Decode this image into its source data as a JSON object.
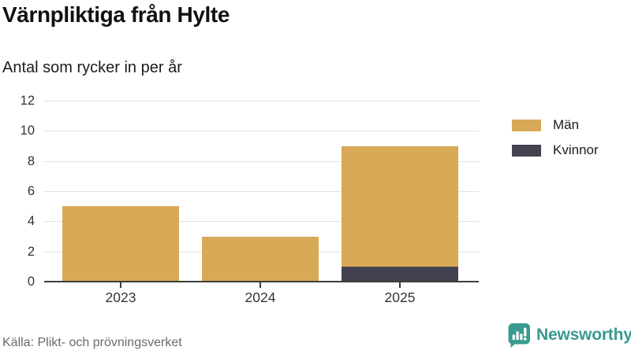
{
  "header": {
    "title": "Värnpliktiga från Hylte",
    "subtitle": "Antal som rycker in per år"
  },
  "legend": [
    {
      "label": "Män",
      "color": "#d8a957"
    },
    {
      "label": "Kvinnor",
      "color": "#434251"
    }
  ],
  "footer": {
    "source": "Källa: Plikt- och prövningsverket",
    "brand": "Newsworthy",
    "brand_color": "#399a8f",
    "brand_icon": "bar-chart-speech-bubble-icon"
  },
  "colors": {
    "men": "#d8a957",
    "women": "#434251",
    "gridline": "#e3e3e3",
    "axis": "#3d3d3d",
    "tick_text": "#333333",
    "source_text": "#6a6a6a",
    "accent_teal": "#399a8f"
  },
  "chart_data": {
    "type": "bar",
    "stacked": true,
    "title": "Värnpliktiga från Hylte",
    "subtitle": "Antal som rycker in per år",
    "categories": [
      "2023",
      "2024",
      "2025"
    ],
    "series": [
      {
        "name": "Män",
        "color": "#d8a957",
        "values": [
          5,
          3,
          8
        ]
      },
      {
        "name": "Kvinnor",
        "color": "#434251",
        "values": [
          0,
          0,
          1
        ]
      }
    ],
    "stack_order_bottom_to_top": [
      "Kvinnor",
      "Män"
    ],
    "totals": [
      5,
      3,
      9
    ],
    "xlabel": "",
    "ylabel": "",
    "ylim": [
      0,
      12
    ],
    "yticks": [
      0,
      2,
      4,
      6,
      8,
      10,
      12
    ],
    "grid": "horizontal",
    "legend_position": "right",
    "source": "Källa: Plikt- och prövningsverket"
  }
}
